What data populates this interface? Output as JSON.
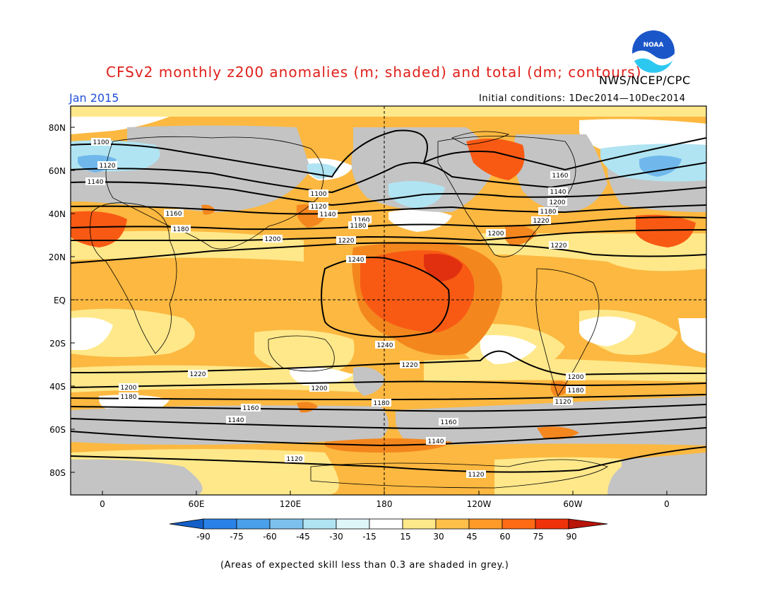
{
  "title": "CFSv2 monthly z200 anomalies (m; shaded) and total (dm; contours)",
  "org": "NWS/NCEP/CPC",
  "logo_text": "NOAA",
  "date": "Jan 2015",
  "initial_conditions": "Initial conditions: 1Dec2014—10Dec2014",
  "footnote": "(Areas of expected skill less than 0.3 are shaded in grey.)",
  "lat_labels": [
    "80N",
    "60N",
    "40N",
    "20N",
    "EQ",
    "20S",
    "40S",
    "60S",
    "80S"
  ],
  "lon_labels": [
    "0",
    "60E",
    "120E",
    "180",
    "120W",
    "60W",
    "0"
  ],
  "contour_labels": [
    "1100",
    "1120",
    "1140",
    "1160",
    "1180",
    "1200",
    "1220",
    "1240",
    "1240",
    "1220",
    "1200",
    "1180",
    "1160",
    "1140",
    "1120",
    "1100",
    "1120",
    "1140",
    "1160",
    "1180",
    "1200",
    "1220",
    "1220",
    "1200",
    "1180",
    "1160",
    "1140",
    "1120",
    "1160",
    "1140",
    "1200",
    "1180",
    "1220",
    "1200",
    "1180",
    "1120"
  ],
  "colorbar": {
    "labels": [
      "-90",
      "-75",
      "-60",
      "-45",
      "-30",
      "-15",
      "15",
      "30",
      "45",
      "60",
      "75",
      "90"
    ],
    "colors": [
      "#1560c8",
      "#2a82e6",
      "#4aa0ea",
      "#7cc0ee",
      "#b0e4f2",
      "#dff6f8",
      "#ffffff",
      "#ffe88a",
      "#ffc04a",
      "#ff9a28",
      "#ff6a14",
      "#f0320a",
      "#b8140a",
      "#8a0a08"
    ]
  },
  "palette": {
    "grey": "#c4c4c4",
    "light_yellow": "#ffe88a",
    "orange": "#fcb840",
    "dark_orange": "#f4861e",
    "red_orange": "#f85a14",
    "red": "#e03010",
    "light_blue": "#b0e4f2",
    "blue": "#70b8ec"
  }
}
